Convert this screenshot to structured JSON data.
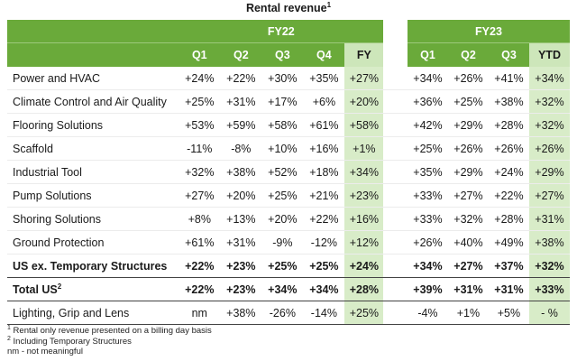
{
  "title": "Rental revenue",
  "title_footnote_mark": "1",
  "groups": {
    "fy22": "FY22",
    "fy23": "FY23"
  },
  "columns_fy22": [
    "Q1",
    "Q2",
    "Q3",
    "Q4",
    "FY"
  ],
  "columns_fy23": [
    "Q1",
    "Q2",
    "Q3",
    "YTD"
  ],
  "rows": [
    {
      "label": "Power and HVAC",
      "sup": "",
      "fy22": [
        "+24%",
        "+22%",
        "+30%",
        "+35%",
        "+27%"
      ],
      "fy23": [
        "+34%",
        "+26%",
        "+41%",
        "+34%"
      ]
    },
    {
      "label": "Climate Control and Air Quality",
      "sup": "",
      "fy22": [
        "+25%",
        "+31%",
        "+17%",
        "+6%",
        "+20%"
      ],
      "fy23": [
        "+36%",
        "+25%",
        "+38%",
        "+32%"
      ]
    },
    {
      "label": "Flooring Solutions",
      "sup": "",
      "fy22": [
        "+53%",
        "+59%",
        "+58%",
        "+61%",
        "+58%"
      ],
      "fy23": [
        "+42%",
        "+29%",
        "+28%",
        "+32%"
      ]
    },
    {
      "label": "Scaffold",
      "sup": "",
      "fy22": [
        "-11%",
        "-8%",
        "+10%",
        "+16%",
        "+1%"
      ],
      "fy23": [
        "+25%",
        "+26%",
        "+26%",
        "+26%"
      ]
    },
    {
      "label": "Industrial Tool",
      "sup": "",
      "fy22": [
        "+32%",
        "+38%",
        "+52%",
        "+18%",
        "+34%"
      ],
      "fy23": [
        "+35%",
        "+29%",
        "+24%",
        "+29%"
      ]
    },
    {
      "label": "Pump Solutions",
      "sup": "",
      "fy22": [
        "+27%",
        "+20%",
        "+25%",
        "+21%",
        "+23%"
      ],
      "fy23": [
        "+33%",
        "+27%",
        "+22%",
        "+27%"
      ]
    },
    {
      "label": "Shoring Solutions",
      "sup": "",
      "fy22": [
        "+8%",
        "+13%",
        "+20%",
        "+22%",
        "+16%"
      ],
      "fy23": [
        "+33%",
        "+32%",
        "+28%",
        "+31%"
      ]
    },
    {
      "label": "Ground Protection",
      "sup": "",
      "fy22": [
        "+61%",
        "+31%",
        "-9%",
        "-12%",
        "+12%"
      ],
      "fy23": [
        "+26%",
        "+40%",
        "+49%",
        "+38%"
      ]
    },
    {
      "label": "US ex. Temporary Structures",
      "sup": "",
      "bold": true,
      "fy22": [
        "+22%",
        "+23%",
        "+25%",
        "+25%",
        "+24%"
      ],
      "fy23": [
        "+34%",
        "+27%",
        "+37%",
        "+32%"
      ]
    },
    {
      "label": "Total US",
      "sup": "2",
      "bold": true,
      "fy22": [
        "+22%",
        "+23%",
        "+34%",
        "+34%",
        "+28%"
      ],
      "fy23": [
        "+39%",
        "+31%",
        "+31%",
        "+33%"
      ]
    },
    {
      "label": "Lighting, Grip and Lens",
      "sup": "",
      "fy22": [
        "nm",
        "+38%",
        "-26%",
        "-14%",
        "+25%"
      ],
      "fy23": [
        "-4%",
        "+1%",
        "+5%",
        "- %"
      ]
    }
  ],
  "footnotes": [
    {
      "mark": "1",
      "text": "Rental only revenue presented on a billing day basis"
    },
    {
      "mark": "2",
      "text": "Including Temporary Structures"
    },
    {
      "mark": "",
      "text": "nm  - not meaningful"
    }
  ],
  "colors": {
    "header_green": "#6aaa3a",
    "highlight_green": "#d8ecc8"
  }
}
